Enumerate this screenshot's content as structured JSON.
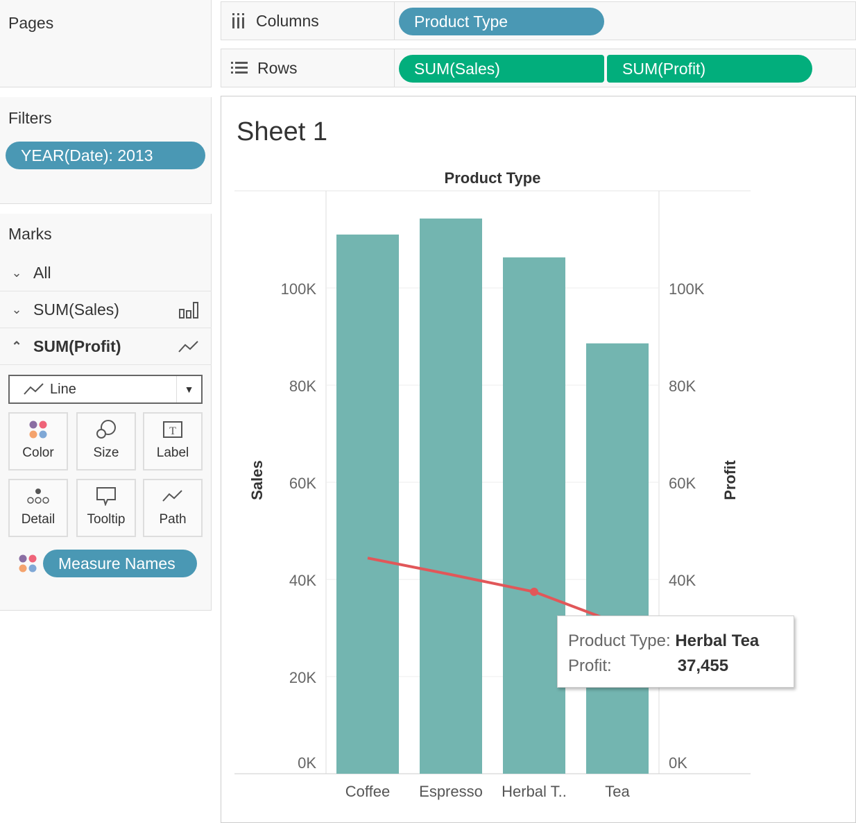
{
  "left_panel": {
    "pages_title": "Pages",
    "filters_title": "Filters",
    "filter_pill": "YEAR(Date): 2013",
    "marks_title": "Marks",
    "marks_rows": [
      "All",
      "SUM(Sales)",
      "SUM(Profit)"
    ],
    "mark_type": "Line",
    "cards": [
      "Color",
      "Size",
      "Label",
      "Detail",
      "Tooltip",
      "Path"
    ],
    "color_pill": "Measure Names"
  },
  "shelves": {
    "columns_label": "Columns",
    "columns_pills": [
      "Product Type"
    ],
    "rows_label": "Rows",
    "rows_pills": [
      "SUM(Sales)",
      "SUM(Profit)"
    ]
  },
  "sheet": {
    "title": "Sheet 1"
  },
  "tooltip": {
    "k1": "Product Type:",
    "v1": "Herbal Tea",
    "k2": "Profit:",
    "v2": "37,455"
  },
  "colors": {
    "bar": "#73b5b0",
    "line": "#e15759",
    "pill_blue": "#4a98b4",
    "pill_green": "#02ae7c"
  },
  "chart_data": {
    "type": "bar+line",
    "title": "Product Type",
    "categories": [
      "Coffee",
      "Espresso",
      "Herbal T..",
      "Tea"
    ],
    "series": [
      {
        "name": "SUM(Sales)",
        "mark": "bar",
        "axis": "left",
        "values": [
          111000,
          114300,
          106300,
          88600
        ]
      },
      {
        "name": "SUM(Profit)",
        "mark": "line",
        "axis": "right",
        "values": [
          44400,
          41000,
          37455,
          31000
        ]
      }
    ],
    "ylabel": "Sales",
    "y2label": "Profit",
    "ylim": [
      0,
      120000
    ],
    "y_ticks": [
      "0K",
      "20K",
      "40K",
      "60K",
      "80K",
      "100K"
    ],
    "y_tick_values": [
      0,
      20000,
      40000,
      60000,
      80000,
      100000
    ],
    "grid": true
  }
}
